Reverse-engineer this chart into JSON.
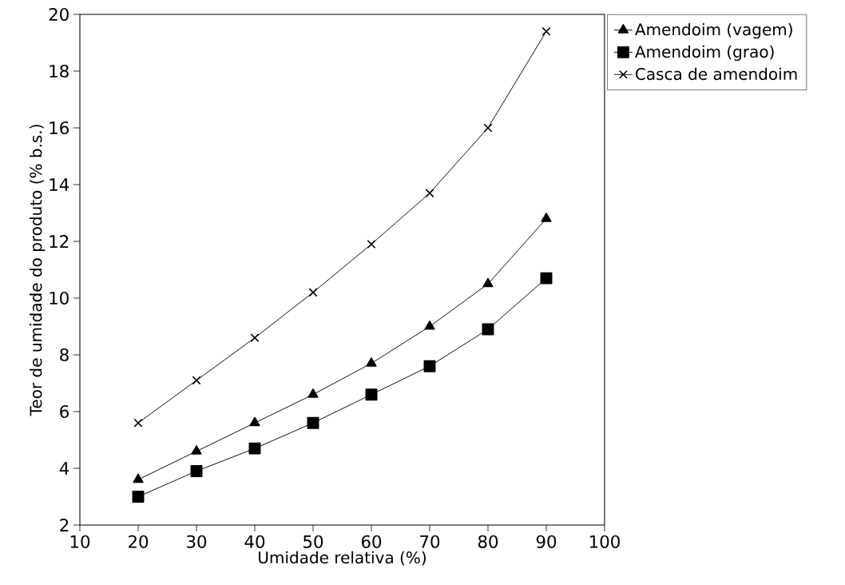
{
  "chart_data": {
    "type": "line",
    "xlabel": "Umidade relativa (%)",
    "ylabel": "Teor de umidade do produto (% b.s.)",
    "x": [
      20,
      30,
      40,
      50,
      60,
      70,
      80,
      90
    ],
    "series": [
      {
        "name": "Amendoim (vagem)",
        "color": "#000000",
        "marker": "triangle",
        "values": [
          3.6,
          4.6,
          5.6,
          6.6,
          7.7,
          9.0,
          10.5,
          12.8
        ]
      },
      {
        "name": "Amendoim (grao)",
        "color": "#000000",
        "marker": "square",
        "values": [
          3.0,
          3.9,
          4.7,
          5.6,
          6.6,
          7.6,
          8.9,
          10.7
        ]
      },
      {
        "name": "Casca de amendoim",
        "color": "#000000",
        "marker": "cross",
        "values": [
          5.6,
          7.1,
          8.6,
          10.2,
          11.9,
          13.7,
          16.0,
          19.4
        ]
      }
    ],
    "xlim": [
      10,
      100
    ],
    "xticks": [
      10,
      20,
      30,
      40,
      50,
      60,
      70,
      80,
      90,
      100
    ],
    "ylim": [
      2,
      20
    ],
    "yticks": [
      2,
      4,
      6,
      8,
      10,
      12,
      14,
      16,
      18,
      20
    ],
    "grid": false,
    "legend": "right",
    "line_style": "solid"
  }
}
